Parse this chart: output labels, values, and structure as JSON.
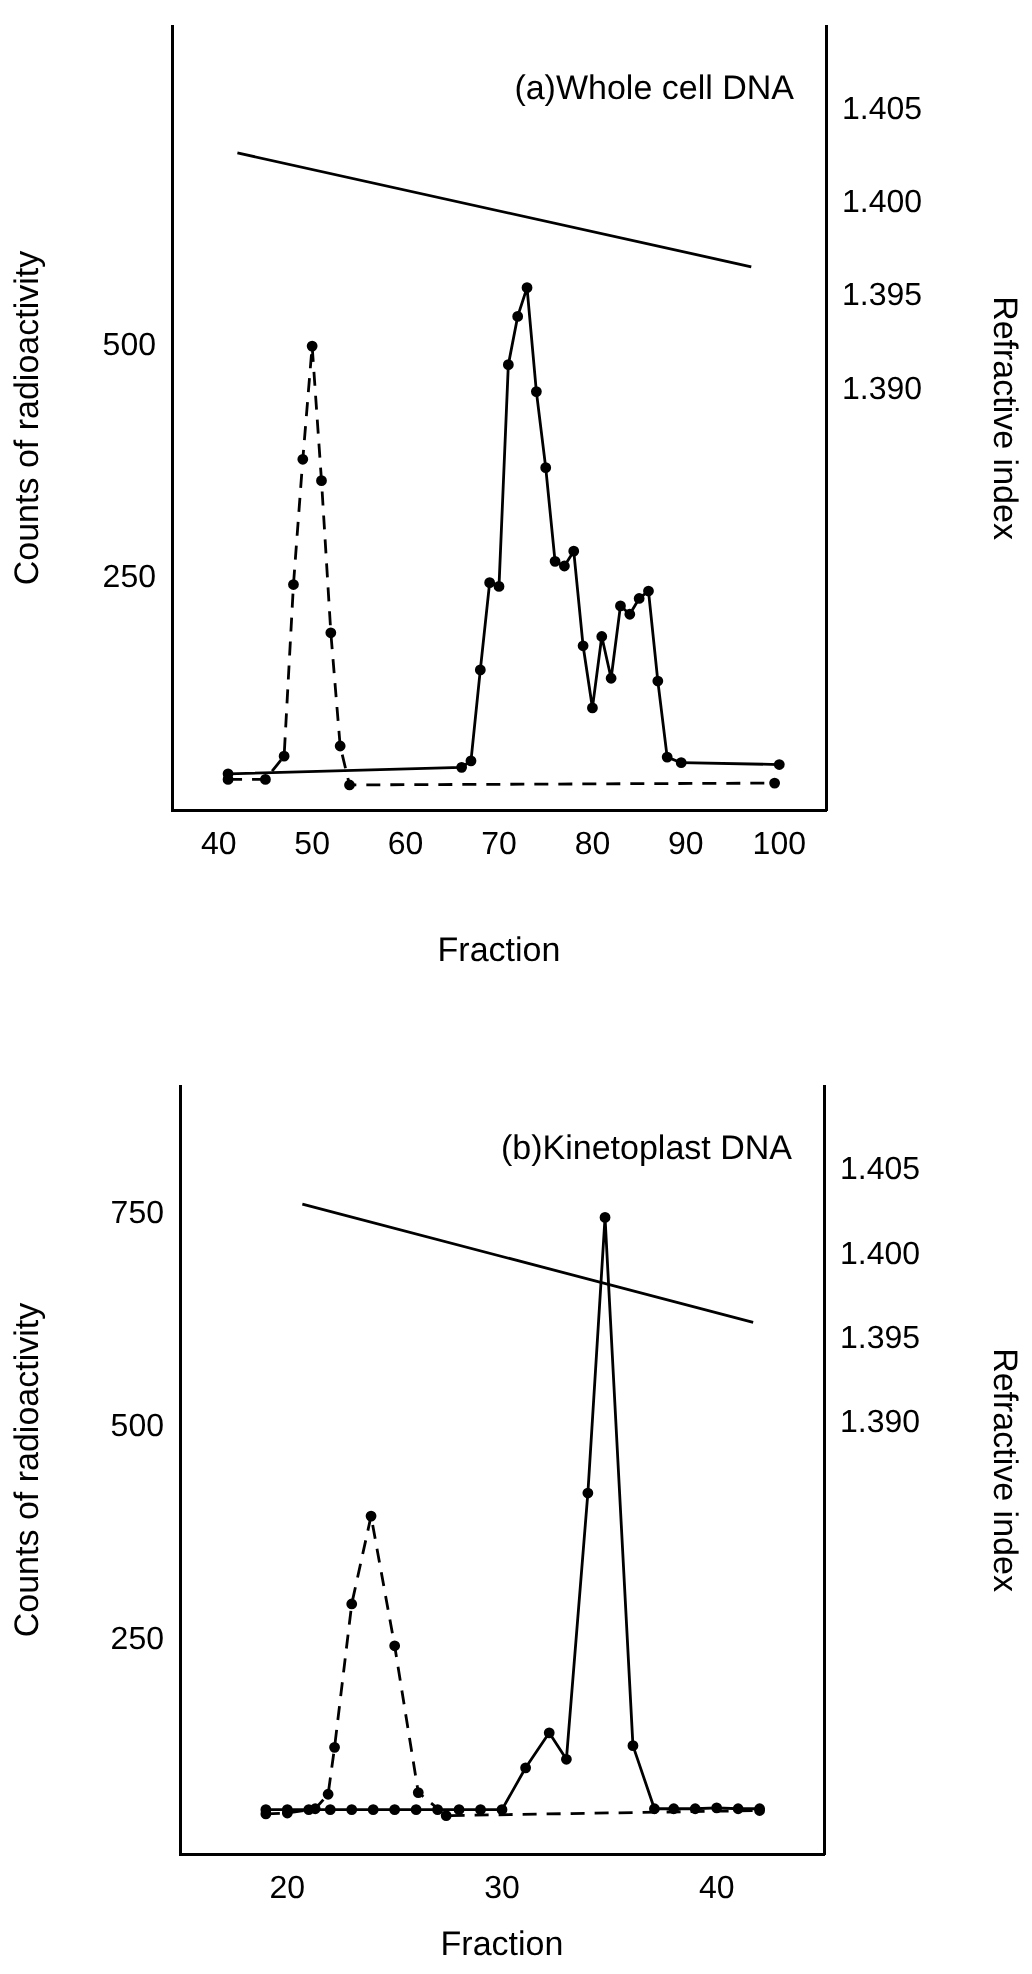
{
  "chart_data": [
    {
      "type": "line",
      "xlabel": "Fraction",
      "ylabel": "Counts of radioactivity",
      "y2label": "Refractive index",
      "annotations": [
        "(a)Whole cell DNA"
      ],
      "xlim": [
        35,
        105
      ],
      "xticks": [
        40,
        50,
        60,
        70,
        80,
        90,
        100
      ],
      "ylim": [
        0,
        845
      ],
      "yticks": [
        250,
        500
      ],
      "y2lim": [
        1.3675,
        1.4095
      ],
      "y2ticks": [
        {
          "value": 1.405,
          "label": "1.405"
        },
        {
          "value": 1.4,
          "label": "1.400"
        },
        {
          "value": 1.395,
          "label": "1.395"
        },
        {
          "value": 1.39,
          "label": "1.390"
        }
      ],
      "grid": false,
      "legend": false,
      "series": [
        {
          "type": "line",
          "color": "#000000",
          "line_style": "dashed",
          "marker": "circle",
          "x": [
            41,
            45,
            47,
            48,
            49,
            50,
            51,
            52,
            53,
            54,
            99.5
          ],
          "values": [
            33,
            33,
            58,
            243,
            378,
            500,
            355,
            191,
            69,
            27,
            29
          ]
        },
        {
          "type": "line",
          "color": "#000000",
          "line_style": "solid",
          "marker": "circle",
          "x": [
            41,
            66,
            67,
            68,
            69,
            70,
            71,
            72,
            73,
            74,
            75,
            76,
            77,
            78,
            79,
            80,
            81,
            82,
            83,
            84,
            85,
            86,
            87,
            88,
            89.5,
            100
          ],
          "values": [
            39,
            46,
            53,
            151,
            245,
            241,
            480,
            532,
            563,
            451,
            369,
            268,
            263,
            279,
            177,
            110,
            187,
            142,
            220,
            211,
            228,
            236,
            139,
            57,
            51,
            49
          ]
        },
        {
          "type": "line",
          "color": "#000000",
          "line_style": "solid",
          "marker": "none",
          "axis": "y2",
          "x": [
            42,
            97
          ],
          "values": [
            1.4027,
            1.3966
          ]
        }
      ]
    },
    {
      "type": "line",
      "xlabel": "Fraction",
      "ylabel": "Counts of radioactivity",
      "y2label": "Refractive index",
      "annotations": [
        "(b)Kinetoplast DNA"
      ],
      "xlim": [
        15,
        45
      ],
      "xticks": [
        20,
        30,
        40
      ],
      "ylim": [
        0,
        900
      ],
      "yticks": [
        250,
        500,
        750
      ],
      "y2lim": [
        1.3645,
        1.41
      ],
      "y2ticks": [
        {
          "value": 1.405,
          "label": "1.405"
        },
        {
          "value": 1.4,
          "label": "1.400"
        },
        {
          "value": 1.395,
          "label": "1.395"
        },
        {
          "value": 1.39,
          "label": "1.390"
        }
      ],
      "grid": false,
      "legend": false,
      "series": [
        {
          "type": "line",
          "color": "#000000",
          "line_style": "dashed",
          "marker": "circle",
          "x": [
            19,
            20,
            21.3,
            21.9,
            22.2,
            23,
            23.9,
            25,
            26.1,
            27.4,
            42
          ],
          "values": [
            47,
            48,
            53,
            70,
            125,
            293,
            396,
            244,
            72,
            45,
            51
          ]
        },
        {
          "type": "line",
          "color": "#000000",
          "line_style": "solid",
          "marker": "circle",
          "x": [
            19,
            20,
            21,
            22,
            23,
            24,
            25,
            26,
            27,
            28,
            29,
            30,
            31.1,
            32.2,
            33,
            34,
            34.8,
            36.1,
            37.1,
            38,
            39,
            40,
            41,
            42
          ],
          "values": [
            52,
            52,
            52,
            52,
            52,
            52,
            52,
            52,
            52,
            52,
            52,
            52,
            101,
            142,
            111,
            423,
            746,
            127,
            53,
            53,
            53,
            54,
            53,
            53
          ]
        },
        {
          "type": "line",
          "color": "#000000",
          "line_style": "solid",
          "marker": "none",
          "axis": "y2",
          "x": [
            20.7,
            41.7
          ],
          "values": [
            1.403,
            1.396
          ]
        }
      ]
    }
  ]
}
